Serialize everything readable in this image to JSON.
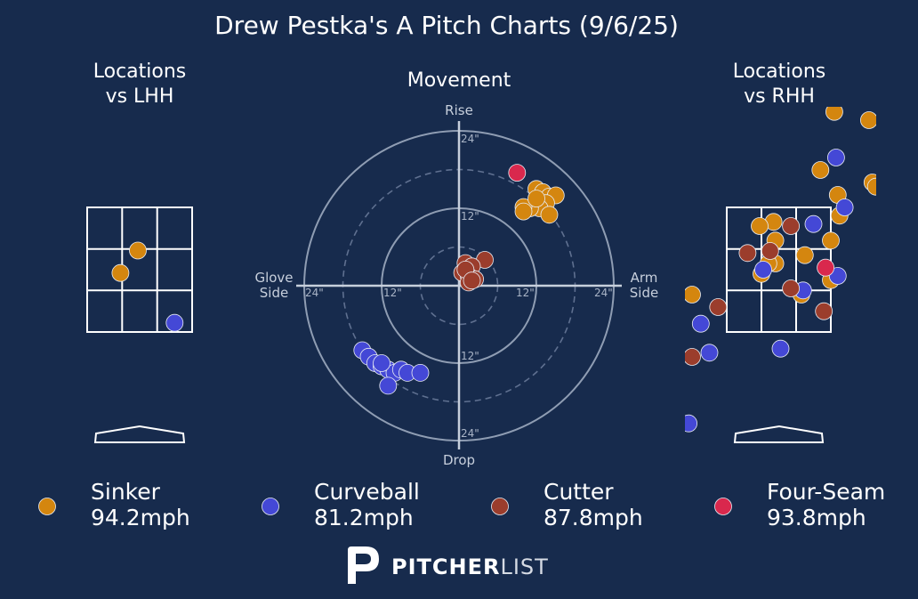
{
  "title": "Drew Pestka's A Pitch Charts (9/6/25)",
  "panels": {
    "lhh": {
      "title_line1": "Locations",
      "title_line2": "vs LHH"
    },
    "movement": {
      "title": "Movement",
      "top": "Rise",
      "bottom": "Drop",
      "left_line1": "Glove",
      "left_line2": "Side",
      "right_line1": "Arm",
      "right_line2": "Side"
    },
    "rhh": {
      "title_line1": "Locations",
      "title_line2": "vs RHH"
    }
  },
  "colors": {
    "Sinker": "#d4860f",
    "Curveball": "#4448d6",
    "Cutter": "#9b3d2c",
    "Four-Seam": "#d9284d",
    "background": "#172b4d"
  },
  "legend": [
    {
      "pitch": "Sinker",
      "velo": "94.2mph"
    },
    {
      "pitch": "Curveball",
      "velo": "81.2mph"
    },
    {
      "pitch": "Cutter",
      "velo": "87.8mph"
    },
    {
      "pitch": "Four-Seam",
      "velo": "93.8mph"
    }
  ],
  "brand": {
    "bold": "PITCHER",
    "light": "LIST"
  },
  "chart_data": [
    {
      "type": "scatter",
      "panel": "Locations vs LHH",
      "units": "strike zone (zone = 3x3 grid, x -1.5..1.5, y 0..3)",
      "points": [
        {
          "pitch": "Sinker",
          "x": -0.05,
          "y": 1.96
        },
        {
          "pitch": "Sinker",
          "x": -0.55,
          "y": 1.42
        },
        {
          "pitch": "Curveball",
          "x": 1.0,
          "y": 0.22
        }
      ]
    },
    {
      "type": "scatter",
      "panel": "Movement",
      "units": "inches (horizontal break, induced vertical break)",
      "rings": [
        12,
        24
      ],
      "ring_labels": [
        "12\"",
        "24\"",
        "12\"",
        "24\"",
        "12\"",
        "24\"",
        "12\"",
        "24\""
      ],
      "points": [
        {
          "pitch": "Four-Seam",
          "x": 9.0,
          "y": 17.5
        },
        {
          "pitch": "Sinker",
          "x": 12.0,
          "y": 15.0
        },
        {
          "pitch": "Sinker",
          "x": 13.0,
          "y": 14.5
        },
        {
          "pitch": "Sinker",
          "x": 14.0,
          "y": 13.8
        },
        {
          "pitch": "Sinker",
          "x": 15.0,
          "y": 14.0
        },
        {
          "pitch": "Sinker",
          "x": 13.5,
          "y": 12.8
        },
        {
          "pitch": "Sinker",
          "x": 12.5,
          "y": 12.0
        },
        {
          "pitch": "Sinker",
          "x": 11.0,
          "y": 12.0
        },
        {
          "pitch": "Sinker",
          "x": 10.0,
          "y": 12.2
        },
        {
          "pitch": "Sinker",
          "x": 10.0,
          "y": 11.5
        },
        {
          "pitch": "Sinker",
          "x": 14.0,
          "y": 11.0
        },
        {
          "pitch": "Sinker",
          "x": 12.0,
          "y": 13.5
        },
        {
          "pitch": "Cutter",
          "x": 4.0,
          "y": 4.0
        },
        {
          "pitch": "Cutter",
          "x": 1.0,
          "y": 3.5
        },
        {
          "pitch": "Cutter",
          "x": 2.0,
          "y": 3.0
        },
        {
          "pitch": "Cutter",
          "x": 0.5,
          "y": 2.0
        },
        {
          "pitch": "Cutter",
          "x": 1.5,
          "y": 1.5
        },
        {
          "pitch": "Cutter",
          "x": 2.5,
          "y": 1.0
        },
        {
          "pitch": "Cutter",
          "x": 1.5,
          "y": 0.5
        },
        {
          "pitch": "Cutter",
          "x": 1.0,
          "y": 2.5
        },
        {
          "pitch": "Cutter",
          "x": 2.0,
          "y": 0.8
        },
        {
          "pitch": "Curveball",
          "x": -15.0,
          "y": -10.0
        },
        {
          "pitch": "Curveball",
          "x": -14.0,
          "y": -11.0
        },
        {
          "pitch": "Curveball",
          "x": -13.0,
          "y": -12.0
        },
        {
          "pitch": "Curveball",
          "x": -12.0,
          "y": -12.5
        },
        {
          "pitch": "Curveball",
          "x": -11.0,
          "y": -13.0
        },
        {
          "pitch": "Curveball",
          "x": -10.0,
          "y": -13.5
        },
        {
          "pitch": "Curveball",
          "x": -9.0,
          "y": -13.0
        },
        {
          "pitch": "Curveball",
          "x": -8.0,
          "y": -13.5
        },
        {
          "pitch": "Curveball",
          "x": -6.0,
          "y": -13.5
        },
        {
          "pitch": "Curveball",
          "x": -11.0,
          "y": -15.5
        },
        {
          "pitch": "Curveball",
          "x": -12.0,
          "y": -12.0
        }
      ]
    },
    {
      "type": "scatter",
      "panel": "Locations vs RHH",
      "units": "strike zone (zone = 3x3 grid, x -1.5..1.5, y 0..3)",
      "points": [
        {
          "pitch": "Sinker",
          "x": 1.6,
          "y": 5.3
        },
        {
          "pitch": "Sinker",
          "x": 2.7,
          "y": 3.6
        },
        {
          "pitch": "Sinker",
          "x": 1.2,
          "y": 3.9
        },
        {
          "pitch": "Sinker",
          "x": 1.7,
          "y": 3.3
        },
        {
          "pitch": "Sinker",
          "x": 1.75,
          "y": 2.8
        },
        {
          "pitch": "Sinker",
          "x": -0.15,
          "y": 2.65
        },
        {
          "pitch": "Sinker",
          "x": -0.55,
          "y": 2.55
        },
        {
          "pitch": "Sinker",
          "x": 1.5,
          "y": 2.2
        },
        {
          "pitch": "Sinker",
          "x": -0.1,
          "y": 2.2
        },
        {
          "pitch": "Sinker",
          "x": 0.75,
          "y": 1.85
        },
        {
          "pitch": "Sinker",
          "x": -0.1,
          "y": 1.65
        },
        {
          "pitch": "Sinker",
          "x": -0.3,
          "y": 1.65
        },
        {
          "pitch": "Sinker",
          "x": 1.5,
          "y": 1.25
        },
        {
          "pitch": "Sinker",
          "x": -0.5,
          "y": 1.4
        },
        {
          "pitch": "Sinker",
          "x": 0.65,
          "y": 0.9
        },
        {
          "pitch": "Sinker",
          "x": -2.5,
          "y": 0.9
        },
        {
          "pitch": "Curveball",
          "x": 1.65,
          "y": 4.2
        },
        {
          "pitch": "Curveball",
          "x": 1.9,
          "y": 3.0
        },
        {
          "pitch": "Curveball",
          "x": 1.0,
          "y": 2.6
        },
        {
          "pitch": "Curveball",
          "x": -0.45,
          "y": 1.5
        },
        {
          "pitch": "Curveball",
          "x": 1.7,
          "y": 1.35
        },
        {
          "pitch": "Curveball",
          "x": 0.7,
          "y": 1.0
        },
        {
          "pitch": "Curveball",
          "x": -3.6,
          "y": 0.45
        },
        {
          "pitch": "Curveball",
          "x": -2.25,
          "y": 0.2
        },
        {
          "pitch": "Curveball",
          "x": 0.05,
          "y": -0.4
        },
        {
          "pitch": "Curveball",
          "x": -2.0,
          "y": -0.5
        },
        {
          "pitch": "Curveball",
          "x": -2.6,
          "y": -2.2
        }
      ],
      "points_extra": [
        {
          "pitch": "Cutter",
          "x": 0.35,
          "y": 2.55
        },
        {
          "pitch": "Cutter",
          "x": -0.9,
          "y": 1.9
        },
        {
          "pitch": "Cutter",
          "x": -0.25,
          "y": 1.95
        },
        {
          "pitch": "Cutter",
          "x": 0.35,
          "y": 1.05
        },
        {
          "pitch": "Cutter",
          "x": 1.3,
          "y": 0.5
        },
        {
          "pitch": "Cutter",
          "x": -1.75,
          "y": 0.6
        },
        {
          "pitch": "Cutter",
          "x": -2.5,
          "y": -0.6
        },
        {
          "pitch": "Four-Seam",
          "x": 1.35,
          "y": 1.55
        }
      ],
      "points_clipped": [
        {
          "pitch": "Sinker",
          "x": 2.6,
          "y": 5.1
        },
        {
          "pitch": "Sinker",
          "x": 2.8,
          "y": 3.5
        }
      ]
    }
  ]
}
